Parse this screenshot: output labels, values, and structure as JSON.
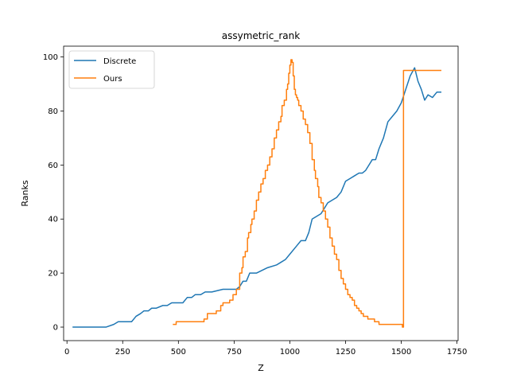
{
  "chart_data": {
    "type": "line",
    "title": "assymetric_rank",
    "xlabel": "Z",
    "ylabel": "Ranks",
    "xlim": [
      -15,
      1755
    ],
    "ylim": [
      -5,
      104
    ],
    "xticks": [
      0,
      250,
      500,
      750,
      1000,
      1250,
      1500,
      1750
    ],
    "yticks": [
      0,
      20,
      40,
      60,
      80,
      100
    ],
    "grid": false,
    "legend_position": "top-left",
    "series": [
      {
        "name": "Discrete",
        "color": "#1f77b4",
        "step": false,
        "x": [
          25,
          175,
          210,
          230,
          290,
          310,
          330,
          345,
          365,
          380,
          400,
          430,
          450,
          470,
          520,
          540,
          560,
          575,
          600,
          620,
          650,
          700,
          735,
          760,
          775,
          790,
          805,
          820,
          850,
          900,
          940,
          960,
          980,
          1000,
          1030,
          1050,
          1070,
          1085,
          1100,
          1120,
          1140,
          1155,
          1170,
          1190,
          1210,
          1230,
          1250,
          1270,
          1290,
          1310,
          1325,
          1340,
          1355,
          1370,
          1385,
          1400,
          1410,
          1420,
          1440,
          1460,
          1480,
          1500,
          1520,
          1540,
          1560,
          1575,
          1590,
          1605,
          1620,
          1640,
          1660,
          1680
        ],
        "y": [
          0,
          0,
          1,
          2,
          2,
          4,
          5,
          6,
          6,
          7,
          7,
          8,
          8,
          9,
          9,
          11,
          11,
          12,
          12,
          13,
          13,
          14,
          14,
          14,
          15,
          17,
          17,
          20,
          20,
          22,
          23,
          24,
          25,
          27,
          30,
          32,
          32,
          35,
          40,
          41,
          42,
          44,
          46,
          47,
          48,
          50,
          54,
          55,
          56,
          57,
          57,
          58,
          60,
          62,
          62,
          66,
          68,
          70,
          76,
          78,
          80,
          83,
          88,
          93,
          96,
          91,
          88,
          84,
          86,
          85,
          87,
          87
        ]
      },
      {
        "name": "Ours",
        "color": "#ff7f0e",
        "step": true,
        "x": [
          475,
          490,
          600,
          615,
          630,
          650,
          670,
          690,
          700,
          710,
          730,
          745,
          760,
          775,
          785,
          790,
          800,
          810,
          815,
          825,
          830,
          840,
          850,
          860,
          870,
          880,
          890,
          900,
          910,
          920,
          930,
          940,
          950,
          960,
          965,
          975,
          985,
          990,
          995,
          1000,
          1005,
          1010,
          1015,
          1020,
          1025,
          1030,
          1035,
          1040,
          1050,
          1060,
          1070,
          1080,
          1090,
          1100,
          1110,
          1115,
          1125,
          1130,
          1140,
          1150,
          1160,
          1170,
          1180,
          1190,
          1200,
          1210,
          1220,
          1230,
          1240,
          1250,
          1260,
          1270,
          1280,
          1290,
          1300,
          1310,
          1320,
          1330,
          1350,
          1365,
          1380,
          1400,
          1420,
          1430,
          1450,
          1500,
          1505,
          1510,
          1680
        ],
        "y": [
          1,
          2,
          2,
          3,
          5,
          5,
          6,
          8,
          9,
          9,
          10,
          12,
          14,
          20,
          22,
          26,
          28,
          33,
          35,
          38,
          40,
          43,
          47,
          50,
          53,
          55,
          58,
          60,
          63,
          66,
          70,
          73,
          76,
          78,
          82,
          84,
          88,
          90,
          94,
          97,
          99,
          98,
          93,
          88,
          86,
          85,
          84,
          82,
          80,
          77,
          75,
          72,
          68,
          62,
          58,
          55,
          52,
          48,
          46,
          43,
          40,
          37,
          33,
          30,
          27,
          25,
          21,
          18,
          16,
          14,
          12,
          11,
          10,
          8,
          7,
          6,
          5,
          4,
          3,
          3,
          2,
          1,
          1,
          1,
          1,
          1,
          0,
          95,
          95
        ]
      }
    ]
  }
}
